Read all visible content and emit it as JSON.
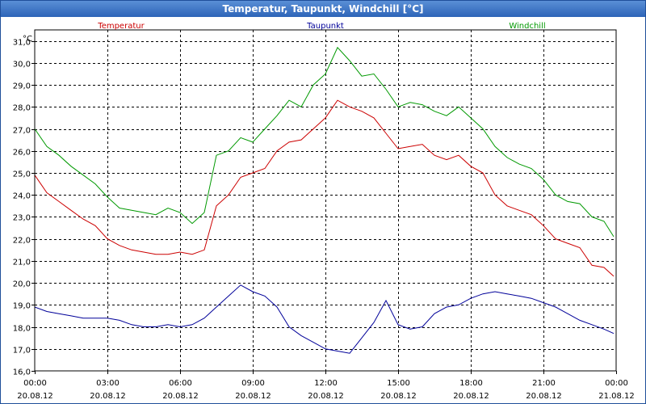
{
  "chart_data": {
    "type": "line",
    "title": "Temperatur, Taupunkt, Windchill [°C]",
    "unit_label": "°C",
    "ylim": [
      16.0,
      31.5
    ],
    "yticks": [
      "16,0",
      "17,0",
      "18,0",
      "19,0",
      "20,0",
      "21,0",
      "22,0",
      "23,0",
      "24,0",
      "25,0",
      "26,0",
      "27,0",
      "28,0",
      "29,0",
      "30,0",
      "31,0"
    ],
    "xlim_hours": [
      0,
      24
    ],
    "xticks": [
      {
        "time": "00:00",
        "date": "20.08.12"
      },
      {
        "time": "03:00",
        "date": "20.08.12"
      },
      {
        "time": "06:00",
        "date": "20.08.12"
      },
      {
        "time": "09:00",
        "date": "20.08.12"
      },
      {
        "time": "12:00",
        "date": "20.08.12"
      },
      {
        "time": "15:00",
        "date": "20.08.12"
      },
      {
        "time": "18:00",
        "date": "20.08.12"
      },
      {
        "time": "21:00",
        "date": "20.08.12"
      },
      {
        "time": "00:00",
        "date": "21.08.12"
      }
    ],
    "grid": true,
    "series": [
      {
        "name": "Temperatur",
        "color": "#cc0000",
        "x": [
          0,
          0.5,
          1,
          1.5,
          2,
          2.5,
          3,
          3.5,
          4,
          4.5,
          5,
          5.5,
          6,
          6.5,
          7,
          7.5,
          8,
          8.5,
          9,
          9.5,
          10,
          10.5,
          11,
          11.5,
          12,
          12.5,
          13,
          13.5,
          14,
          14.5,
          15,
          15.5,
          16,
          16.5,
          17,
          17.5,
          18,
          18.5,
          19,
          19.5,
          20,
          20.5,
          21,
          21.5,
          22,
          22.5,
          23,
          23.5,
          23.9
        ],
        "values": [
          24.9,
          24.1,
          23.7,
          23.3,
          22.9,
          22.6,
          22.0,
          21.7,
          21.5,
          21.4,
          21.3,
          21.3,
          21.4,
          21.3,
          21.5,
          23.5,
          24.0,
          24.8,
          25.0,
          25.2,
          26.0,
          26.4,
          26.5,
          27.0,
          27.5,
          28.3,
          28.0,
          27.8,
          27.5,
          26.8,
          26.1,
          26.2,
          26.3,
          25.8,
          25.6,
          25.8,
          25.3,
          25.0,
          24.0,
          23.5,
          23.3,
          23.1,
          22.6,
          22.0,
          21.8,
          21.6,
          20.8,
          20.7,
          20.3
        ]
      },
      {
        "name": "Taupunkt",
        "color": "#000099",
        "x": [
          0,
          0.5,
          1,
          1.5,
          2,
          2.5,
          3,
          3.5,
          4,
          4.5,
          5,
          5.5,
          6,
          6.5,
          7,
          7.5,
          8,
          8.5,
          9,
          9.5,
          10,
          10.5,
          11,
          11.5,
          12,
          12.5,
          13,
          13.5,
          14,
          14.5,
          15,
          15.5,
          16,
          16.5,
          17,
          17.5,
          18,
          18.5,
          19,
          19.5,
          20,
          20.5,
          21,
          21.5,
          22,
          22.5,
          23,
          23.5,
          23.9
        ],
        "values": [
          18.9,
          18.7,
          18.6,
          18.5,
          18.4,
          18.4,
          18.4,
          18.3,
          18.1,
          18.0,
          18.0,
          18.1,
          18.0,
          18.1,
          18.4,
          18.9,
          19.4,
          19.9,
          19.6,
          19.4,
          18.9,
          18.0,
          17.6,
          17.3,
          17.0,
          16.9,
          16.8,
          17.5,
          18.2,
          19.2,
          18.1,
          17.9,
          18.0,
          18.6,
          18.9,
          19.0,
          19.3,
          19.5,
          19.6,
          19.5,
          19.4,
          19.3,
          19.1,
          18.9,
          18.6,
          18.3,
          18.1,
          17.9,
          17.7
        ]
      },
      {
        "name": "Windchill",
        "color": "#009900",
        "x": [
          0,
          0.5,
          1,
          1.5,
          2,
          2.5,
          3,
          3.5,
          4,
          4.5,
          5,
          5.5,
          6,
          6.5,
          7,
          7.5,
          8,
          8.5,
          9,
          9.5,
          10,
          10.5,
          11,
          11.5,
          12,
          12.5,
          13,
          13.5,
          14,
          14.5,
          15,
          15.5,
          16,
          16.5,
          17,
          17.5,
          18,
          18.5,
          19,
          19.5,
          20,
          20.5,
          21,
          21.5,
          22,
          22.5,
          23,
          23.5,
          23.9
        ],
        "values": [
          27.0,
          26.2,
          25.8,
          25.3,
          24.9,
          24.5,
          23.9,
          23.4,
          23.3,
          23.2,
          23.1,
          23.4,
          23.2,
          22.7,
          23.2,
          25.8,
          26.0,
          26.6,
          26.4,
          27.0,
          27.6,
          28.3,
          28.0,
          29.0,
          29.5,
          30.7,
          30.1,
          29.4,
          29.5,
          28.8,
          28.0,
          28.2,
          28.1,
          27.8,
          27.6,
          28.0,
          27.5,
          27.0,
          26.2,
          25.7,
          25.4,
          25.2,
          24.7,
          24.0,
          23.7,
          23.6,
          23.0,
          22.8,
          22.1
        ]
      }
    ]
  }
}
